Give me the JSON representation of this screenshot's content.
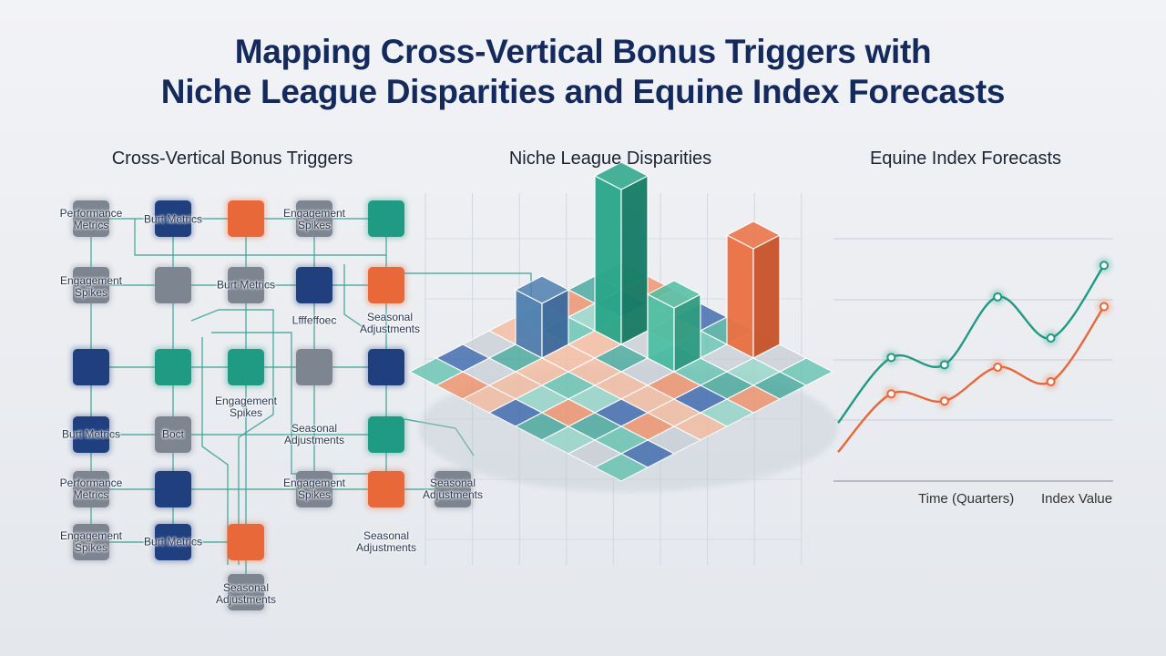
{
  "header": {
    "title_lines": [
      "Mapping Cross-Vertical Bonus Triggers with",
      "Niche League Disparities and Equine Index Forecasts"
    ]
  },
  "panels": [
    {
      "subtitle": "Cross-Vertical Bonus Triggers",
      "labels": [
        "Performance Metrics",
        "Burt Metrics",
        "Engagement Spikes",
        "Engagement Spikes",
        "Burt Metrics",
        "Lfffeffoec",
        "Seasonal Adjustments",
        "Engagement Spikes",
        "Burt Metrics",
        "Boct",
        "Seasonal Adjustments",
        "Performance Metrics",
        "Engagement Spikes",
        "Seasonal Adjustments",
        "Engagement Spikes",
        "Burt Metrics",
        "Seasonal Adjustments",
        "Seasonal Adjustments"
      ]
    },
    {
      "subtitle": "Niche League Disparities"
    },
    {
      "subtitle": "Equine Index Forecasts",
      "chart_data": {
        "type": "line",
        "xlabel": "Time (Quarters)",
        "ylabel": "Index Value",
        "ylim": [
          0,
          100
        ],
        "series": [
          {
            "color": "#1f9a83",
            "values": [
              24,
              51,
              48,
              76,
              59,
              89
            ]
          },
          {
            "color": "#e8683a",
            "values": [
              12,
              36,
              33,
              47,
              41,
              72
            ]
          }
        ]
      }
    }
  ]
}
